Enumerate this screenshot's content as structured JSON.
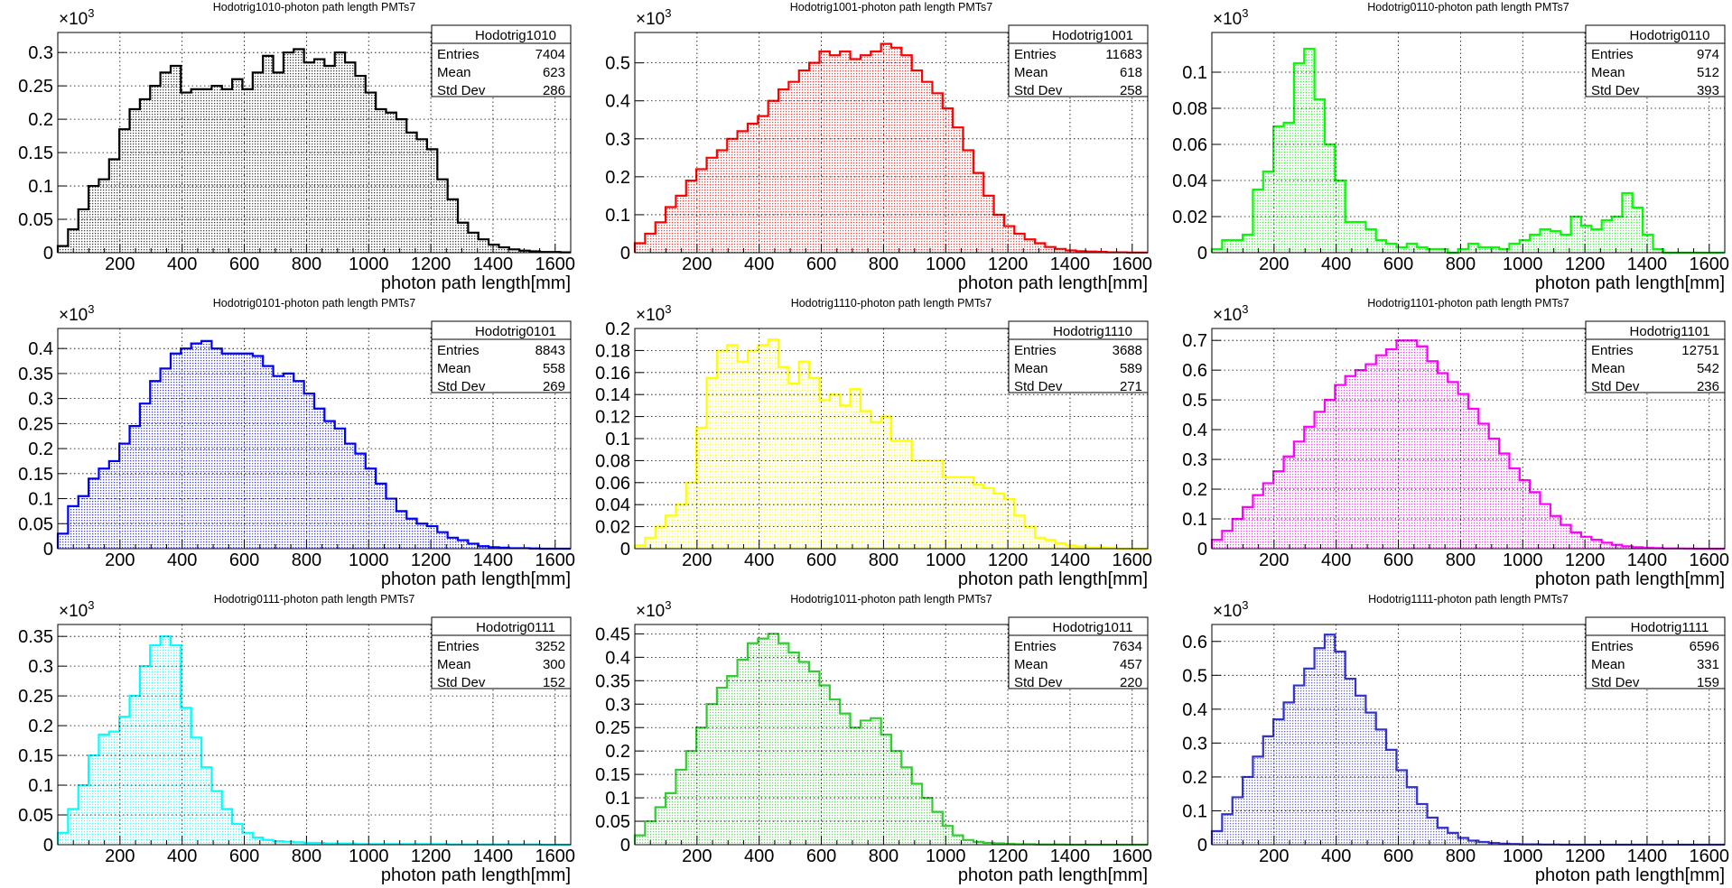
{
  "axis_label_x": "photon path length[mm]",
  "stat_labels": {
    "entries": "Entries",
    "mean": "Mean",
    "std": "Std Dev"
  },
  "y_multiplier": {
    "base": "×10",
    "power": "3"
  },
  "chart_data": [
    {
      "type": "bar",
      "name": "Hodotrig1010",
      "title": "Hodotrig1010-photon path length PMTs7",
      "color": "#000000",
      "fill": "#c8c8c8",
      "entries": "7404",
      "mean": "623",
      "std": "286",
      "x": {
        "min": 0,
        "max": 1650,
        "ticks": [
          200,
          400,
          600,
          800,
          1000,
          1200,
          1400,
          1600
        ]
      },
      "y": {
        "min": 0,
        "max": 0.33,
        "ticks": [
          0,
          0.05,
          0.1,
          0.15,
          0.2,
          0.25,
          0.3
        ],
        "labels": [
          "0",
          "0.05",
          "0.1",
          "0.15",
          "0.2",
          "0.25",
          "0.3"
        ]
      },
      "bin_width": 33,
      "values": [
        0.01,
        0.035,
        0.065,
        0.1,
        0.11,
        0.14,
        0.185,
        0.215,
        0.23,
        0.25,
        0.27,
        0.28,
        0.24,
        0.245,
        0.245,
        0.25,
        0.245,
        0.26,
        0.245,
        0.27,
        0.295,
        0.27,
        0.3,
        0.305,
        0.285,
        0.29,
        0.28,
        0.3,
        0.285,
        0.265,
        0.24,
        0.215,
        0.21,
        0.2,
        0.18,
        0.17,
        0.155,
        0.11,
        0.08,
        0.045,
        0.03,
        0.02,
        0.012,
        0.008,
        0.005,
        0.003,
        0.002,
        0.001,
        0.001,
        0.0005
      ]
    },
    {
      "type": "bar",
      "name": "Hodotrig1001",
      "title": "Hodotrig1001-photon path length PMTs7",
      "color": "#ff0000",
      "fill": "#f5c2c2",
      "entries": "11683",
      "mean": "618",
      "std": "258",
      "x": {
        "min": 0,
        "max": 1650,
        "ticks": [
          200,
          400,
          600,
          800,
          1000,
          1200,
          1400,
          1600
        ]
      },
      "y": {
        "min": 0,
        "max": 0.58,
        "ticks": [
          0,
          0.1,
          0.2,
          0.3,
          0.4,
          0.5
        ],
        "labels": [
          "0",
          "0.1",
          "0.2",
          "0.3",
          "0.4",
          "0.5"
        ]
      },
      "bin_width": 33,
      "values": [
        0.025,
        0.05,
        0.08,
        0.12,
        0.15,
        0.19,
        0.22,
        0.25,
        0.27,
        0.3,
        0.32,
        0.34,
        0.36,
        0.4,
        0.43,
        0.45,
        0.48,
        0.5,
        0.53,
        0.52,
        0.53,
        0.51,
        0.52,
        0.53,
        0.55,
        0.54,
        0.52,
        0.48,
        0.45,
        0.42,
        0.38,
        0.33,
        0.27,
        0.21,
        0.15,
        0.1,
        0.07,
        0.05,
        0.035,
        0.025,
        0.015,
        0.01,
        0.006,
        0.004,
        0.003,
        0.002,
        0.001,
        0.001,
        0.0005,
        0.0005
      ]
    },
    {
      "type": "bar",
      "name": "Hodotrig0110",
      "title": "Hodotrig0110-photon path length PMTs7",
      "color": "#00ff00",
      "fill": "#c2f5c2",
      "entries": "974",
      "mean": "512",
      "std": "393",
      "x": {
        "min": 0,
        "max": 1650,
        "ticks": [
          200,
          400,
          600,
          800,
          1000,
          1200,
          1400,
          1600
        ]
      },
      "y": {
        "min": 0,
        "max": 0.122,
        "ticks": [
          0,
          0.02,
          0.04,
          0.06,
          0.08,
          0.1
        ],
        "labels": [
          "0",
          "0.02",
          "0.04",
          "0.06",
          "0.08",
          "0.1"
        ]
      },
      "bin_width": 33,
      "values": [
        0.002,
        0.007,
        0.007,
        0.01,
        0.035,
        0.045,
        0.07,
        0.072,
        0.105,
        0.113,
        0.085,
        0.06,
        0.04,
        0.017,
        0.017,
        0.013,
        0.007,
        0.005,
        0.003,
        0.005,
        0.003,
        0.002,
        0.002,
        0.0,
        0.002,
        0.005,
        0.003,
        0.003,
        0.002,
        0.005,
        0.007,
        0.01,
        0.013,
        0.012,
        0.01,
        0.02,
        0.015,
        0.013,
        0.018,
        0.02,
        0.033,
        0.025,
        0.01,
        0.002,
        0.0,
        0.0,
        0.0,
        0.0,
        0.0,
        0.0
      ]
    },
    {
      "type": "bar",
      "name": "Hodotrig0101",
      "title": "Hodotrig0101-photon path length PMTs7",
      "color": "#0000ff",
      "fill": "#c2c2ee",
      "entries": "8843",
      "mean": "558",
      "std": "269",
      "x": {
        "min": 0,
        "max": 1650,
        "ticks": [
          200,
          400,
          600,
          800,
          1000,
          1200,
          1400,
          1600
        ]
      },
      "y": {
        "min": 0,
        "max": 0.44,
        "ticks": [
          0,
          0.05,
          0.1,
          0.15,
          0.2,
          0.25,
          0.3,
          0.35,
          0.4
        ],
        "labels": [
          "0",
          "0.05",
          "0.1",
          "0.15",
          "0.2",
          "0.25",
          "0.3",
          "0.35",
          "0.4"
        ]
      },
      "bin_width": 33,
      "values": [
        0.03,
        0.085,
        0.105,
        0.14,
        0.16,
        0.175,
        0.21,
        0.245,
        0.29,
        0.335,
        0.36,
        0.39,
        0.4,
        0.41,
        0.415,
        0.4,
        0.39,
        0.39,
        0.39,
        0.385,
        0.365,
        0.345,
        0.35,
        0.335,
        0.31,
        0.28,
        0.255,
        0.24,
        0.21,
        0.19,
        0.16,
        0.13,
        0.1,
        0.075,
        0.06,
        0.05,
        0.045,
        0.033,
        0.022,
        0.017,
        0.01,
        0.005,
        0.003,
        0.002,
        0.001,
        0.001,
        0.0005,
        0.0,
        0.0,
        0.0
      ]
    },
    {
      "type": "bar",
      "name": "Hodotrig1110",
      "title": "Hodotrig1110-photon path length PMTs7",
      "color": "#ffff00",
      "fill": "#fcfcc0",
      "entries": "3688",
      "mean": "589",
      "std": "271",
      "x": {
        "min": 0,
        "max": 1650,
        "ticks": [
          200,
          400,
          600,
          800,
          1000,
          1200,
          1400,
          1600
        ]
      },
      "y": {
        "min": 0,
        "max": 0.2,
        "ticks": [
          0,
          0.02,
          0.04,
          0.06,
          0.08,
          0.1,
          0.12,
          0.14,
          0.16,
          0.18,
          0.2
        ],
        "labels": [
          "0",
          "0.02",
          "0.04",
          "0.06",
          "0.08",
          "0.1",
          "0.12",
          "0.14",
          "0.16",
          "0.18",
          "0.2"
        ]
      },
      "bin_width": 33,
      "values": [
        0.003,
        0.01,
        0.02,
        0.03,
        0.04,
        0.06,
        0.11,
        0.155,
        0.18,
        0.185,
        0.17,
        0.18,
        0.185,
        0.19,
        0.165,
        0.15,
        0.17,
        0.155,
        0.135,
        0.14,
        0.13,
        0.145,
        0.125,
        0.115,
        0.12,
        0.098,
        0.098,
        0.08,
        0.08,
        0.08,
        0.065,
        0.065,
        0.065,
        0.058,
        0.055,
        0.05,
        0.045,
        0.03,
        0.02,
        0.01,
        0.008,
        0.005,
        0.003,
        0.002,
        0.001,
        0.001,
        0.0005,
        0.0,
        0.0,
        0.0
      ]
    },
    {
      "type": "bar",
      "name": "Hodotrig1101",
      "title": "Hodotrig1101-photon path length PMTs7",
      "color": "#ff00ff",
      "fill": "#f5c2f5",
      "entries": "12751",
      "mean": "542",
      "std": "236",
      "x": {
        "min": 0,
        "max": 1650,
        "ticks": [
          200,
          400,
          600,
          800,
          1000,
          1200,
          1400,
          1600
        ]
      },
      "y": {
        "min": 0,
        "max": 0.74,
        "ticks": [
          0,
          0.1,
          0.2,
          0.3,
          0.4,
          0.5,
          0.6,
          0.7
        ],
        "labels": [
          "0",
          "0.1",
          "0.2",
          "0.3",
          "0.4",
          "0.5",
          "0.6",
          "0.7"
        ]
      },
      "bin_width": 33,
      "values": [
        0.03,
        0.06,
        0.1,
        0.14,
        0.18,
        0.22,
        0.26,
        0.31,
        0.36,
        0.41,
        0.46,
        0.5,
        0.55,
        0.58,
        0.6,
        0.62,
        0.65,
        0.67,
        0.7,
        0.7,
        0.68,
        0.63,
        0.59,
        0.56,
        0.52,
        0.47,
        0.42,
        0.37,
        0.32,
        0.27,
        0.23,
        0.19,
        0.15,
        0.11,
        0.08,
        0.055,
        0.04,
        0.03,
        0.02,
        0.013,
        0.008,
        0.005,
        0.003,
        0.002,
        0.001,
        0.001,
        0.0005,
        0.0,
        0.0,
        0.0
      ]
    },
    {
      "type": "bar",
      "name": "Hodotrig0111",
      "title": "Hodotrig0111-photon path length PMTs7",
      "color": "#00ffff",
      "fill": "#c2f5f5",
      "entries": "3252",
      "mean": "300",
      "std": "152",
      "x": {
        "min": 0,
        "max": 1650,
        "ticks": [
          200,
          400,
          600,
          800,
          1000,
          1200,
          1400,
          1600
        ]
      },
      "y": {
        "min": 0,
        "max": 0.37,
        "ticks": [
          0,
          0.05,
          0.1,
          0.15,
          0.2,
          0.25,
          0.3,
          0.35
        ],
        "labels": [
          "0",
          "0.05",
          "0.1",
          "0.15",
          "0.2",
          "0.25",
          "0.3",
          "0.35"
        ]
      },
      "bin_width": 33,
      "values": [
        0.02,
        0.06,
        0.1,
        0.15,
        0.185,
        0.19,
        0.215,
        0.25,
        0.3,
        0.335,
        0.35,
        0.335,
        0.23,
        0.18,
        0.13,
        0.09,
        0.06,
        0.035,
        0.02,
        0.012,
        0.008,
        0.006,
        0.005,
        0.004,
        0.003,
        0.003,
        0.002,
        0.002,
        0.002,
        0.001,
        0.001,
        0.001,
        0.001,
        0.001,
        0.001,
        0.001,
        0.001,
        0.001,
        0.0005,
        0.0005,
        0.0005,
        0.0005,
        0.0005,
        0.0005,
        0.0005,
        0.0005,
        0.0005,
        0.0,
        0.0,
        0.0
      ]
    },
    {
      "type": "bar",
      "name": "Hodotrig1011",
      "title": "Hodotrig1011-photon path length PMTs7",
      "color": "#33cc33",
      "fill": "#cdeecd",
      "entries": "7634",
      "mean": "457",
      "std": "220",
      "x": {
        "min": 0,
        "max": 1650,
        "ticks": [
          200,
          400,
          600,
          800,
          1000,
          1200,
          1400,
          1600
        ]
      },
      "y": {
        "min": 0,
        "max": 0.47,
        "ticks": [
          0,
          0.05,
          0.1,
          0.15,
          0.2,
          0.25,
          0.3,
          0.35,
          0.4,
          0.45
        ],
        "labels": [
          "0",
          "0.05",
          "0.1",
          "0.15",
          "0.2",
          "0.25",
          "0.3",
          "0.35",
          "0.4",
          "0.45"
        ]
      },
      "bin_width": 33,
      "values": [
        0.02,
        0.05,
        0.08,
        0.11,
        0.16,
        0.2,
        0.25,
        0.3,
        0.335,
        0.36,
        0.395,
        0.43,
        0.44,
        0.45,
        0.43,
        0.41,
        0.39,
        0.37,
        0.34,
        0.31,
        0.28,
        0.25,
        0.265,
        0.27,
        0.235,
        0.2,
        0.165,
        0.13,
        0.1,
        0.07,
        0.04,
        0.02,
        0.01,
        0.006,
        0.004,
        0.003,
        0.002,
        0.001,
        0.001,
        0.0005,
        0.0005,
        0.0005,
        0.0,
        0.0,
        0.0,
        0.0,
        0.0,
        0.0,
        0.0,
        0.0
      ]
    },
    {
      "type": "bar",
      "name": "Hodotrig1111",
      "title": "Hodotrig1111-photon path length PMTs7",
      "color": "#3333cc",
      "fill": "#cdcdee",
      "entries": "6596",
      "mean": "331",
      "std": "159",
      "x": {
        "min": 0,
        "max": 1650,
        "ticks": [
          200,
          400,
          600,
          800,
          1000,
          1200,
          1400,
          1600
        ]
      },
      "y": {
        "min": 0,
        "max": 0.65,
        "ticks": [
          0,
          0.1,
          0.2,
          0.3,
          0.4,
          0.5,
          0.6
        ],
        "labels": [
          "0",
          "0.1",
          "0.2",
          "0.3",
          "0.4",
          "0.5",
          "0.6"
        ]
      },
      "bin_width": 33,
      "values": [
        0.04,
        0.09,
        0.14,
        0.2,
        0.26,
        0.32,
        0.37,
        0.42,
        0.47,
        0.52,
        0.58,
        0.62,
        0.57,
        0.49,
        0.44,
        0.39,
        0.34,
        0.28,
        0.22,
        0.17,
        0.12,
        0.08,
        0.05,
        0.035,
        0.02,
        0.012,
        0.008,
        0.005,
        0.003,
        0.002,
        0.001,
        0.001,
        0.0005,
        0.0005,
        0.0,
        0.0,
        0.0,
        0.0,
        0.0,
        0.0,
        0.0,
        0.0,
        0.0,
        0.0,
        0.0,
        0.0,
        0.0,
        0.0,
        0.0,
        0.0
      ]
    }
  ]
}
